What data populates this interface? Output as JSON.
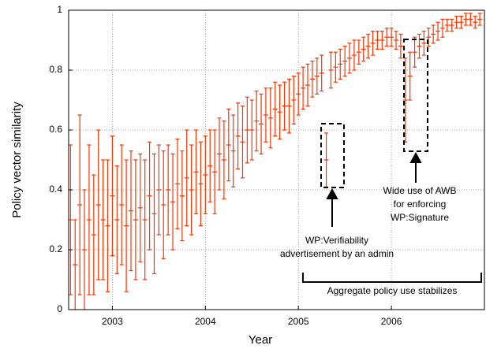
{
  "chart_data": {
    "type": "errorbar",
    "xlabel": "Year",
    "ylabel": "Policy vector similarity",
    "x": [
      2002.55,
      2002.6,
      2002.65,
      2002.7,
      2002.75,
      2002.8,
      2002.85,
      2002.9,
      2002.95,
      2003.0,
      2003.05,
      2003.1,
      2003.15,
      2003.2,
      2003.25,
      2003.3,
      2003.35,
      2003.4,
      2003.45,
      2003.5,
      2003.55,
      2003.6,
      2003.65,
      2003.7,
      2003.75,
      2003.8,
      2003.85,
      2003.9,
      2003.95,
      2004.0,
      2004.05,
      2004.1,
      2004.15,
      2004.2,
      2004.25,
      2004.3,
      2004.35,
      2004.4,
      2004.45,
      2004.5,
      2004.55,
      2004.6,
      2004.65,
      2004.7,
      2004.75,
      2004.8,
      2004.85,
      2004.9,
      2004.95,
      2005.0,
      2005.05,
      2005.1,
      2005.15,
      2005.2,
      2005.25,
      2005.3,
      2005.35,
      2005.4,
      2005.45,
      2005.5,
      2005.55,
      2005.6,
      2005.65,
      2005.7,
      2005.75,
      2005.8,
      2005.85,
      2005.9,
      2005.95,
      2006.0,
      2006.05,
      2006.1,
      2006.15,
      2006.2,
      2006.25,
      2006.3,
      2006.35,
      2006.4,
      2006.45,
      2006.5,
      2006.55,
      2006.6,
      2006.65,
      2006.7,
      2006.75,
      2006.8,
      2006.85,
      2006.9,
      2006.95
    ],
    "values": [
      0.3,
      0.15,
      0.35,
      0.2,
      0.3,
      0.25,
      0.35,
      0.3,
      0.28,
      0.38,
      0.3,
      0.35,
      0.28,
      0.33,
      0.3,
      0.34,
      0.3,
      0.38,
      0.32,
      0.4,
      0.35,
      0.4,
      0.36,
      0.42,
      0.38,
      0.44,
      0.4,
      0.46,
      0.42,
      0.45,
      0.48,
      0.46,
      0.52,
      0.5,
      0.55,
      0.53,
      0.58,
      0.56,
      0.6,
      0.6,
      0.63,
      0.62,
      0.65,
      0.64,
      0.67,
      0.66,
      0.68,
      0.68,
      0.7,
      0.72,
      0.74,
      0.75,
      0.77,
      0.78,
      0.79,
      0.5,
      0.8,
      0.81,
      0.82,
      0.83,
      0.84,
      0.85,
      0.86,
      0.87,
      0.88,
      0.89,
      0.9,
      0.9,
      0.91,
      0.91,
      0.9,
      0.88,
      0.7,
      0.78,
      0.86,
      0.88,
      0.89,
      0.91,
      0.92,
      0.93,
      0.94,
      0.95,
      0.95,
      0.96,
      0.96,
      0.97,
      0.97,
      0.96,
      0.97
    ],
    "errors": [
      0.25,
      0.15,
      0.3,
      0.2,
      0.25,
      0.2,
      0.25,
      0.2,
      0.22,
      0.2,
      0.18,
      0.2,
      0.22,
      0.2,
      0.2,
      0.18,
      0.2,
      0.18,
      0.2,
      0.15,
      0.18,
      0.15,
      0.16,
      0.15,
      0.15,
      0.16,
      0.15,
      0.14,
      0.14,
      0.13,
      0.12,
      0.14,
      0.12,
      0.13,
      0.12,
      0.12,
      0.11,
      0.12,
      0.11,
      0.1,
      0.1,
      0.1,
      0.09,
      0.1,
      0.09,
      0.09,
      0.08,
      0.09,
      0.08,
      0.07,
      0.07,
      0.07,
      0.06,
      0.06,
      0.06,
      0.09,
      0.06,
      0.05,
      0.05,
      0.05,
      0.05,
      0.05,
      0.04,
      0.04,
      0.04,
      0.04,
      0.03,
      0.03,
      0.03,
      0.03,
      0.03,
      0.04,
      0.14,
      0.08,
      0.05,
      0.04,
      0.04,
      0.03,
      0.03,
      0.03,
      0.03,
      0.02,
      0.02,
      0.02,
      0.02,
      0.02,
      0.02,
      0.02,
      0.02
    ],
    "color": "#ff3300",
    "xlim": [
      2002.53,
      2007.0
    ],
    "xticks": [
      2003,
      2004,
      2005,
      2006
    ],
    "ylim": [
      0,
      1
    ],
    "yticks": [
      0,
      0.2,
      0.4,
      0.6,
      0.8,
      1
    ],
    "grid": true,
    "annotations": [
      {
        "lines": [
          "WP:Verifiability",
          "advertisement by an admin"
        ]
      },
      {
        "lines": [
          "Wide use of AWB",
          "for enforcing",
          "WP:Signature"
        ]
      },
      {
        "lines": [
          "Aggregate policy use stabilizes"
        ]
      }
    ]
  }
}
